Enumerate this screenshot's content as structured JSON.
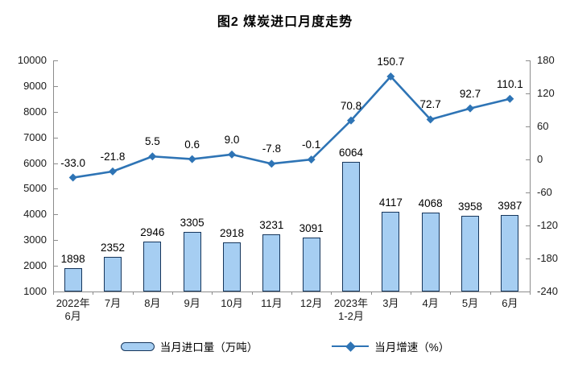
{
  "page": {
    "background": "#ffffff"
  },
  "chart_data": {
    "type": "combo-bar-line",
    "title": "图2 煤炭进口月度走势",
    "grid": false,
    "legend_position": "bottom",
    "categories": [
      [
        "2022年",
        "6月"
      ],
      [
        "7月"
      ],
      [
        "8月"
      ],
      [
        "9月"
      ],
      [
        "10月"
      ],
      [
        "11月"
      ],
      [
        "12月"
      ],
      [
        "2023年",
        "1-2月"
      ],
      [
        "3月"
      ],
      [
        "4月"
      ],
      [
        "5月"
      ],
      [
        "6月"
      ]
    ],
    "series": [
      {
        "name": "当月进口量（万吨）",
        "type": "bar",
        "axis": "left",
        "values": [
          1898,
          2352,
          2946,
          3305,
          2918,
          3231,
          3091,
          6064,
          4117,
          4068,
          3958,
          3987
        ],
        "labels": [
          "1898",
          "2352",
          "2946",
          "3305",
          "2918",
          "3231",
          "3091",
          "6064",
          "4117",
          "4068",
          "3958",
          "3987"
        ]
      },
      {
        "name": "当月增速（%）",
        "type": "line",
        "axis": "right",
        "marker": "diamond",
        "values": [
          -33.0,
          -21.8,
          5.5,
          0.6,
          9.0,
          -7.8,
          -0.1,
          70.8,
          150.7,
          72.7,
          92.7,
          110.1
        ],
        "labels": [
          "-33.0",
          "-21.8",
          "5.5",
          "0.6",
          "9.0",
          "-7.8",
          "-0.1",
          "70.8",
          "150.7",
          "72.7",
          "92.7",
          "110.1"
        ]
      }
    ],
    "left_axis": {
      "min": 1000,
      "max": 10000,
      "step": 1000,
      "tick_values": [
        1000,
        2000,
        3000,
        4000,
        5000,
        6000,
        7000,
        8000,
        9000,
        10000
      ],
      "tick_labels": [
        "1000",
        "2000",
        "3000",
        "4000",
        "5000",
        "6000",
        "7000",
        "8000",
        "9000",
        "10000"
      ]
    },
    "right_axis": {
      "min": -240,
      "max": 180,
      "step": 60,
      "tick_values": [
        -240,
        -180,
        -120,
        -60,
        0,
        60,
        120,
        180
      ],
      "tick_labels": [
        "-240",
        "-180",
        "-120",
        "-60",
        "0",
        "60",
        "120",
        "180"
      ]
    },
    "colors": {
      "bar_fill": "#a6cef2",
      "bar_border": "#16365c",
      "line": "#2e74b5",
      "axis": "#8c8c8c",
      "text": "#000000"
    }
  }
}
